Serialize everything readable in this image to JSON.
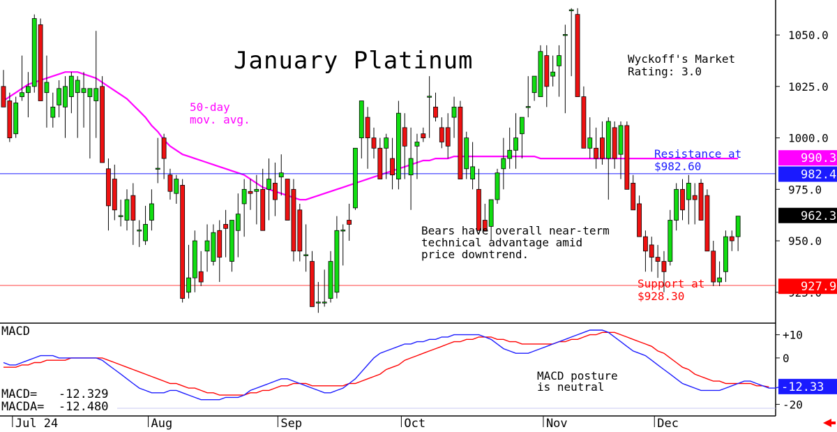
{
  "chart_data": [
    {
      "type": "candlestick",
      "title": "January Platinum",
      "ylim": [
        910,
        1067
      ],
      "y_ticks": [
        {
          "value": 1050,
          "label": "1050.0"
        },
        {
          "value": 1025,
          "label": "1025.0"
        },
        {
          "value": 1000,
          "label": "1000.0"
        },
        {
          "value": 975,
          "label": "975.0"
        },
        {
          "value": 950,
          "label": "950.0"
        },
        {
          "value": 925,
          "label": "925.0"
        }
      ],
      "x_labels": [
        {
          "index": 1,
          "label": "Jul 24"
        },
        {
          "index": 23,
          "label": "Aug"
        },
        {
          "index": 44,
          "label": "Sep"
        },
        {
          "index": 64,
          "label": "Oct"
        },
        {
          "index": 87,
          "label": "Nov"
        },
        {
          "index": 105,
          "label": "Dec"
        }
      ],
      "candles": [
        [
          1025,
          1033,
          1015,
          1015
        ],
        [
          1018,
          1022,
          998,
          1000
        ],
        [
          1002,
          1020,
          1000,
          1017
        ],
        [
          1020,
          1040,
          1018,
          1022
        ],
        [
          1022,
          1032,
          1010,
          1025
        ],
        [
          1025,
          1060,
          1022,
          1058
        ],
        [
          1055,
          1058,
          1018,
          1018
        ],
        [
          1022,
          1040,
          1005,
          1027
        ],
        [
          1010,
          1022,
          1005,
          1015
        ],
        [
          1016,
          1028,
          1010,
          1024
        ],
        [
          1015,
          1030,
          1000,
          1025
        ],
        [
          1020,
          1032,
          1012,
          1030
        ],
        [
          1022,
          1030,
          1000,
          1028
        ],
        [
          1022,
          1032,
          1005,
          1024
        ],
        [
          1020,
          1024,
          990,
          1024
        ],
        [
          1018,
          1052,
          1000,
          1024
        ],
        [
          1025,
          1030,
          988,
          988
        ],
        [
          985,
          990,
          955,
          967
        ],
        [
          980,
          987,
          960,
          965
        ],
        [
          962,
          970,
          957,
          962
        ],
        [
          960,
          975,
          955,
          970
        ],
        [
          972,
          978,
          948,
          960
        ],
        [
          955,
          960,
          947,
          955
        ],
        [
          950,
          967,
          948,
          958
        ],
        [
          960,
          975,
          955,
          968
        ],
        [
          985,
          1000,
          978,
          985
        ],
        [
          1000,
          1002,
          980,
          990
        ],
        [
          982,
          985,
          970,
          974
        ],
        [
          973,
          982,
          968,
          980
        ],
        [
          977,
          980,
          920,
          922
        ],
        [
          925,
          948,
          922,
          932
        ],
        [
          932,
          955,
          925,
          950
        ],
        [
          935,
          945,
          928,
          930
        ],
        [
          945,
          958,
          935,
          950
        ],
        [
          940,
          958,
          938,
          954
        ],
        [
          955,
          960,
          930,
          942
        ],
        [
          958,
          965,
          942,
          956
        ],
        [
          940,
          960,
          935,
          960
        ],
        [
          955,
          973,
          942,
          963
        ],
        [
          968,
          980,
          952,
          975
        ],
        [
          974,
          980,
          965,
          973
        ],
        [
          974,
          982,
          958,
          975
        ],
        [
          975,
          985,
          955,
          955
        ],
        [
          975,
          990,
          960,
          980
        ],
        [
          978,
          988,
          962,
          970
        ],
        [
          981,
          992,
          972,
          983
        ],
        [
          980,
          980,
          960,
          960
        ],
        [
          975,
          980,
          940,
          945
        ],
        [
          965,
          968,
          940,
          945
        ],
        [
          943,
          958,
          935,
          943
        ],
        [
          940,
          945,
          918,
          918
        ],
        [
          920,
          930,
          915,
          920
        ],
        [
          920,
          936,
          918,
          920
        ],
        [
          922,
          945,
          920,
          940
        ],
        [
          925,
          962,
          922,
          955
        ],
        [
          955,
          958,
          938,
          955
        ],
        [
          960,
          968,
          950,
          958
        ],
        [
          966,
          995,
          965,
          995
        ],
        [
          1000,
          1018,
          990,
          1018
        ],
        [
          1010,
          1015,
          985,
          1000
        ],
        [
          1000,
          1005,
          990,
          995
        ],
        [
          995,
          1000,
          980,
          980
        ],
        [
          995,
          1002,
          980,
          1000
        ],
        [
          990,
          1000,
          975,
          982
        ],
        [
          980,
          1018,
          975,
          1012
        ],
        [
          1005,
          1012,
          980,
          996
        ],
        [
          982,
          1005,
          965,
          990
        ],
        [
          996,
          1002,
          980,
          998
        ],
        [
          1002,
          1005,
          998,
          1000
        ],
        [
          1020,
          1030,
          1000,
          1020
        ],
        [
          1015,
          1022,
          1008,
          1010
        ],
        [
          1005,
          1010,
          995,
          998
        ],
        [
          1005,
          1012,
          990,
          996
        ],
        [
          1010,
          1020,
          1000,
          1015
        ],
        [
          1015,
          1018,
          980,
          980
        ],
        [
          985,
          1003,
          980,
          1000
        ],
        [
          980,
          998,
          975,
          986
        ],
        [
          975,
          985,
          955,
          955
        ],
        [
          960,
          968,
          955,
          955
        ],
        [
          957,
          970,
          950,
          970
        ],
        [
          970,
          985,
          968,
          983
        ],
        [
          985,
          1000,
          975,
          990
        ],
        [
          990,
          1005,
          985,
          994
        ],
        [
          994,
          1012,
          985,
          1000
        ],
        [
          1002,
          1010,
          990,
          1010
        ],
        [
          1015,
          1030,
          1010,
          1015
        ],
        [
          1022,
          1030,
          1018,
          1030
        ],
        [
          1020,
          1045,
          1020,
          1042
        ],
        [
          1040,
          1045,
          1015,
          1025
        ],
        [
          1030,
          1040,
          1025,
          1032
        ],
        [
          1035,
          1045,
          1020,
          1040
        ],
        [
          1050,
          1055,
          1012,
          1050
        ],
        [
          1062,
          1063,
          1030,
          1062
        ],
        [
          1060,
          1063,
          1020,
          1020
        ],
        [
          1020,
          1025,
          995,
          995
        ],
        [
          995,
          1010,
          990,
          1000
        ],
        [
          995,
          1005,
          985,
          990
        ],
        [
          1000,
          1008,
          987,
          990
        ],
        [
          990,
          1010,
          970,
          1008
        ],
        [
          1005,
          1008,
          985,
          990
        ],
        [
          992,
          1008,
          980,
          1006
        ],
        [
          1006,
          1008,
          975,
          975
        ],
        [
          978,
          982,
          965,
          965
        ],
        [
          968,
          972,
          952,
          952
        ],
        [
          952,
          955,
          935,
          945
        ],
        [
          948,
          952,
          935,
          942
        ],
        [
          942,
          948,
          932,
          940
        ],
        [
          940,
          945,
          925,
          935
        ],
        [
          940,
          965,
          938,
          960
        ],
        [
          960,
          978,
          955,
          975
        ],
        [
          975,
          980,
          960,
          965
        ],
        [
          970,
          982,
          958,
          978
        ],
        [
          972,
          978,
          958,
          970
        ],
        [
          978,
          980,
          960,
          960
        ],
        [
          972,
          975,
          945,
          945
        ],
        [
          945,
          950,
          928,
          930
        ],
        [
          930,
          940,
          928,
          932
        ],
        [
          935,
          955,
          930,
          952
        ],
        [
          952,
          955,
          945,
          950
        ],
        [
          952,
          962,
          945,
          962
        ]
      ],
      "ma50": [
        1018,
        1020,
        1022,
        1024,
        1026,
        1027,
        1028,
        1029,
        1030,
        1031,
        1032,
        1032,
        1032,
        1031,
        1030,
        1029,
        1027,
        1025,
        1023,
        1021,
        1019,
        1016,
        1013,
        1010,
        1006,
        1003,
        999,
        996,
        994,
        992,
        991,
        990,
        989,
        988,
        987,
        986,
        985,
        984,
        983,
        982,
        980,
        978,
        976,
        975,
        974,
        973,
        972,
        971,
        970,
        970,
        971,
        972,
        973,
        974,
        975,
        976,
        977,
        978,
        979,
        980,
        981,
        982,
        983,
        984,
        985,
        986,
        987,
        988,
        989,
        989,
        990,
        990,
        990,
        991,
        991,
        991,
        991,
        991,
        991,
        991,
        991,
        991,
        991,
        991,
        991,
        991,
        991,
        990,
        990,
        990,
        990,
        990,
        990,
        990,
        990,
        990,
        990,
        990,
        990,
        990,
        990,
        990,
        990,
        990,
        990,
        990,
        990,
        990,
        990,
        990,
        990,
        990,
        990,
        990,
        990,
        990,
        990,
        990,
        990,
        990
      ],
      "ma_label": "50-day\nmov. avg.",
      "resistance": {
        "value": 982.6,
        "label": "Resistance at\n$982.60"
      },
      "support": {
        "value": 928.3,
        "label": "Support at\n$928.30"
      },
      "tags": [
        {
          "value": 990.3,
          "label": "990.3",
          "color": "#ff00ff"
        },
        {
          "value": 982.4,
          "label": "982.4",
          "color": "#1a1aff"
        },
        {
          "value": 962.3,
          "label": "962.3",
          "color": "#000000"
        },
        {
          "value": 927.9,
          "label": "927.9",
          "color": "#ff0000"
        }
      ],
      "annotations": {
        "rating": "Wyckoff's Market\nRating: 3.0",
        "comment": "Bears have overall near-term\ntechnical advantage amid\nprice downtrend."
      }
    },
    {
      "type": "line",
      "title": "MACD",
      "ylim": [
        -25,
        15
      ],
      "y_ticks": [
        {
          "value": 10,
          "label": "+10"
        },
        {
          "value": 0,
          "label": "0"
        },
        {
          "value": -20,
          "label": "-20"
        }
      ],
      "macd": [
        -2,
        -3,
        -3,
        -2,
        -1,
        0,
        1,
        1,
        1,
        0,
        0,
        0,
        0,
        0,
        0,
        0,
        -1,
        -3,
        -5,
        -7,
        -9,
        -11,
        -13,
        -14,
        -15,
        -15,
        -15,
        -14,
        -14,
        -15,
        -16,
        -17,
        -18,
        -18,
        -18,
        -18,
        -17,
        -17,
        -17,
        -16,
        -14,
        -13,
        -12,
        -11,
        -10,
        -9,
        -9,
        -10,
        -11,
        -12,
        -13,
        -14,
        -15,
        -15,
        -14,
        -13,
        -11,
        -9,
        -6,
        -3,
        0,
        2,
        3,
        4,
        5,
        6,
        6,
        7,
        7,
        8,
        8,
        9,
        9,
        10,
        10,
        10,
        10,
        10,
        9,
        8,
        6,
        4,
        3,
        2,
        2,
        2,
        3,
        4,
        5,
        6,
        7,
        8,
        9,
        10,
        11,
        12,
        12,
        12,
        11,
        9,
        7,
        5,
        3,
        2,
        1,
        -1,
        -3,
        -5,
        -7,
        -9,
        -11,
        -12,
        -13,
        -14,
        -14,
        -14,
        -14,
        -13,
        -12,
        -11,
        -10,
        -10,
        -11,
        -12,
        -13,
        -13,
        -12.329
      ],
      "macda": [
        -4,
        -4,
        -4,
        -3,
        -3,
        -2,
        -2,
        -1,
        -1,
        -1,
        -1,
        0,
        0,
        0,
        0,
        0,
        0,
        -1,
        -2,
        -3,
        -4,
        -5,
        -6,
        -7,
        -8,
        -9,
        -10,
        -11,
        -11,
        -12,
        -13,
        -13,
        -14,
        -15,
        -15,
        -16,
        -16,
        -16,
        -16,
        -16,
        -15,
        -15,
        -14,
        -14,
        -13,
        -12,
        -12,
        -11,
        -11,
        -11,
        -12,
        -12,
        -12,
        -12,
        -12,
        -12,
        -11,
        -11,
        -10,
        -9,
        -8,
        -7,
        -5,
        -4,
        -3,
        -1,
        0,
        1,
        2,
        3,
        4,
        5,
        6,
        7,
        7,
        8,
        8,
        9,
        9,
        9,
        8,
        8,
        7,
        7,
        6,
        6,
        6,
        6,
        6,
        6,
        7,
        7,
        8,
        8,
        9,
        10,
        10,
        11,
        11,
        11,
        10,
        9,
        8,
        7,
        6,
        5,
        3,
        2,
        0,
        -2,
        -4,
        -5,
        -7,
        -8,
        -9,
        -10,
        -10,
        -11,
        -11,
        -11,
        -11,
        -11,
        -12,
        -12,
        -12.48
      ],
      "macd_label": "MACD=   -12.329",
      "macda_label": "MACDA=  -12.480",
      "tag": {
        "value": -12.33,
        "label": "-12.33",
        "color": "#1a1aff"
      },
      "note": "MACD posture\nis neutral"
    }
  ]
}
